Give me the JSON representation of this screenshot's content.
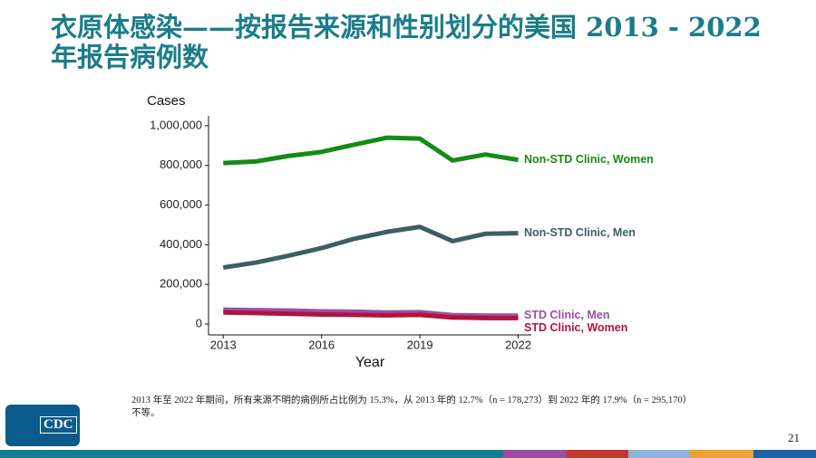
{
  "title": "衣原体感染——按报告来源和性别划分的美国 2013 - 2022 年报告病例数",
  "chart_data": {
    "type": "line",
    "y_label": "Cases",
    "x_label": "Year",
    "x": [
      2013,
      2014,
      2015,
      2016,
      2017,
      2018,
      2019,
      2020,
      2021,
      2022
    ],
    "series": [
      {
        "name": "Non-STD Clinic, Women",
        "color": "#168a16",
        "values": [
          812000,
          820000,
          848000,
          868000,
          905000,
          940000,
          935000,
          825000,
          855000,
          828000
        ]
      },
      {
        "name": "Non-STD Clinic, Men",
        "color": "#3e5f61",
        "values": [
          285000,
          310000,
          345000,
          383000,
          430000,
          465000,
          490000,
          418000,
          455000,
          458000
        ]
      },
      {
        "name": "STD Clinic, Men",
        "color": "#9b4fa8",
        "values": [
          72000,
          70000,
          68000,
          64000,
          62000,
          58000,
          60000,
          45000,
          42000,
          42000
        ]
      },
      {
        "name": "STD Clinic, Women",
        "color": "#b0143c",
        "values": [
          58000,
          55000,
          52000,
          48000,
          46000,
          44000,
          46000,
          33000,
          30000,
          30000
        ]
      }
    ],
    "xlim": [
      2012.55,
      2022.4
    ],
    "xticks": [
      2013,
      2016,
      2019,
      2022
    ],
    "ylim": [
      -55000,
      1050000
    ],
    "yticks": [
      0,
      {
        "value": 200000,
        "label": "200,000"
      },
      {
        "value": 400000,
        "label": "400,000"
      },
      {
        "value": 600000,
        "label": "600,000"
      },
      {
        "value": 800000,
        "label": "800,000"
      },
      {
        "value": 1000000,
        "label": "1,000,000"
      }
    ],
    "grid": false
  },
  "footnote": "2013 年至 2022 年期间，所有来源不明的病例所占比例为 15.3%，从 2013 年的 12.7%（n = 178,273）到 2022 年的 17.9%（n = 295,170）不等。",
  "logo": "CDC",
  "page_number": "21"
}
